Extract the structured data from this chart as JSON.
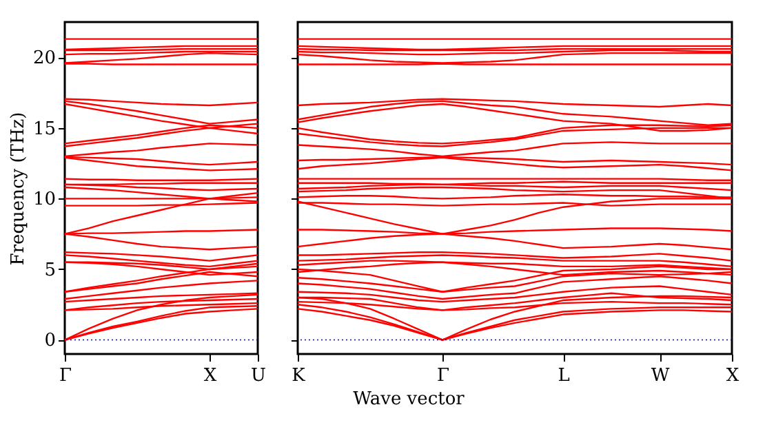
{
  "chart_data": [
    {
      "type": "line",
      "ylabel": "Frequency (THz)",
      "categories": [
        "Γ",
        null,
        null,
        null,
        null,
        null,
        "X",
        null,
        "U"
      ],
      "ylim": [
        -1,
        22.5
      ],
      "yticks": [
        0,
        5,
        10,
        15,
        20
      ],
      "grid": false,
      "legend": false,
      "ref_lines": [
        {
          "axis": "y",
          "value": 0,
          "color": "#0000ff",
          "line_style": "dotted"
        }
      ],
      "series": [
        {
          "color": "#ff0000",
          "values": [
            0,
            0.45,
            0.85,
            1.2,
            1.55,
            1.85,
            2.0,
            2.1,
            2.2
          ]
        },
        {
          "color": "#ff0000",
          "values": [
            0,
            0.5,
            0.95,
            1.3,
            1.7,
            2.05,
            2.3,
            2.35,
            2.4
          ]
        },
        {
          "color": "#ff0000",
          "values": [
            0,
            0.8,
            1.5,
            2.1,
            2.5,
            2.8,
            3.0,
            3.1,
            3.2
          ]
        },
        {
          "color": "#ff0000",
          "values": [
            2.1,
            2.15,
            2.2,
            2.3,
            2.4,
            2.45,
            2.5,
            2.55,
            2.6
          ]
        },
        {
          "color": "#ff0000",
          "values": [
            2.1,
            2.3,
            2.45,
            2.6,
            2.7,
            2.75,
            2.8,
            2.85,
            2.9
          ]
        },
        {
          "color": "#ff0000",
          "values": [
            2.7,
            2.8,
            2.9,
            3.0,
            3.1,
            3.15,
            3.2,
            3.25,
            3.3
          ]
        },
        {
          "color": "#ff0000",
          "values": [
            2.9,
            3.1,
            3.3,
            3.5,
            3.7,
            3.85,
            4.0,
            4.1,
            4.2
          ]
        },
        {
          "color": "#ff0000",
          "values": [
            3.4,
            3.6,
            3.8,
            4.0,
            4.3,
            4.55,
            4.8,
            4.65,
            4.5
          ]
        },
        {
          "color": "#ff0000",
          "values": [
            3.4,
            3.7,
            3.95,
            4.2,
            4.5,
            4.75,
            5.0,
            5.1,
            5.2
          ]
        },
        {
          "color": "#ff0000",
          "values": [
            5.5,
            5.45,
            5.35,
            5.2,
            5.0,
            4.8,
            4.6,
            4.7,
            4.8
          ]
        },
        {
          "color": "#ff0000",
          "values": [
            5.5,
            5.5,
            5.45,
            5.4,
            5.3,
            5.15,
            5.0,
            5.2,
            5.4
          ]
        },
        {
          "color": "#ff0000",
          "values": [
            6.0,
            5.9,
            5.75,
            5.6,
            5.45,
            5.3,
            5.2,
            5.4,
            5.6
          ]
        },
        {
          "color": "#ff0000",
          "values": [
            6.2,
            6.15,
            6.1,
            6.0,
            5.9,
            5.75,
            5.6,
            5.8,
            6.0
          ]
        },
        {
          "color": "#ff0000",
          "values": [
            7.5,
            7.3,
            7.05,
            6.8,
            6.6,
            6.5,
            6.4,
            6.5,
            6.6
          ]
        },
        {
          "color": "#ff0000",
          "values": [
            7.5,
            7.55,
            7.55,
            7.6,
            7.65,
            7.7,
            7.7,
            7.75,
            7.8
          ]
        },
        {
          "color": "#ff0000",
          "values": [
            9.5,
            9.5,
            9.5,
            9.5,
            9.55,
            9.55,
            9.6,
            9.65,
            9.7
          ]
        },
        {
          "color": "#ff0000",
          "values": [
            7.5,
            7.9,
            8.4,
            8.8,
            9.2,
            9.6,
            10.0,
            9.9,
            9.8
          ]
        },
        {
          "color": "#ff0000",
          "values": [
            10.0,
            10.0,
            10.0,
            10.0,
            10.0,
            10.0,
            10.0,
            10.05,
            10.1
          ]
        },
        {
          "color": "#ff0000",
          "values": [
            10.8,
            10.7,
            10.6,
            10.45,
            10.3,
            10.15,
            10.0,
            10.2,
            10.4
          ]
        },
        {
          "color": "#ff0000",
          "values": [
            11.0,
            10.95,
            10.9,
            10.8,
            10.75,
            10.65,
            10.6,
            10.65,
            10.7
          ]
        },
        {
          "color": "#ff0000",
          "values": [
            11.0,
            11.0,
            11.0,
            11.05,
            11.05,
            11.1,
            11.1,
            11.1,
            11.1
          ]
        },
        {
          "color": "#ff0000",
          "values": [
            11.4,
            11.35,
            11.35,
            11.3,
            11.3,
            11.3,
            11.3,
            11.35,
            11.4
          ]
        },
        {
          "color": "#ff0000",
          "values": [
            12.9,
            12.7,
            12.5,
            12.3,
            12.2,
            12.1,
            12.0,
            12.05,
            12.1
          ]
        },
        {
          "color": "#ff0000",
          "values": [
            12.95,
            12.9,
            12.85,
            12.8,
            12.65,
            12.5,
            12.4,
            12.5,
            12.6
          ]
        },
        {
          "color": "#ff0000",
          "values": [
            13.0,
            13.15,
            13.3,
            13.4,
            13.6,
            13.75,
            13.9,
            13.85,
            13.8
          ]
        },
        {
          "color": "#ff0000",
          "values": [
            13.7,
            13.9,
            14.1,
            14.3,
            14.55,
            14.8,
            15.0,
            14.8,
            14.6
          ]
        },
        {
          "color": "#ff0000",
          "values": [
            13.9,
            14.1,
            14.3,
            14.5,
            14.75,
            15.0,
            15.2,
            15.1,
            15.0
          ]
        },
        {
          "color": "#ff0000",
          "values": [
            16.7,
            16.4,
            16.1,
            15.8,
            15.5,
            15.25,
            15.0,
            15.15,
            15.3
          ]
        },
        {
          "color": "#ff0000",
          "values": [
            16.9,
            16.7,
            16.45,
            16.2,
            15.9,
            15.6,
            15.3,
            15.45,
            15.6
          ]
        },
        {
          "color": "#ff0000",
          "values": [
            17.05,
            17.0,
            16.9,
            16.8,
            16.7,
            16.65,
            16.6,
            16.7,
            16.8
          ]
        },
        {
          "color": "#ff0000",
          "values": [
            19.6,
            19.7,
            19.8,
            19.9,
            20.05,
            20.2,
            20.3,
            20.25,
            20.2
          ]
        },
        {
          "color": "#ff0000",
          "values": [
            20.2,
            20.25,
            20.25,
            20.3,
            20.35,
            20.4,
            20.4,
            20.4,
            20.4
          ]
        },
        {
          "color": "#ff0000",
          "values": [
            20.5,
            20.5,
            20.5,
            20.5,
            20.55,
            20.6,
            20.6,
            20.6,
            20.6
          ]
        },
        {
          "color": "#ff0000",
          "values": [
            20.55,
            20.6,
            20.65,
            20.7,
            20.75,
            20.8,
            20.8,
            20.8,
            20.8
          ]
        },
        {
          "color": "#ff0000",
          "values": [
            21.3,
            21.3,
            21.3,
            21.3,
            21.3,
            21.3,
            21.3,
            21.3,
            21.3
          ]
        },
        {
          "color": "#ff0000",
          "values": [
            19.55,
            19.55,
            19.5,
            19.5,
            19.5,
            19.5,
            19.5,
            19.5,
            19.5
          ]
        }
      ]
    },
    {
      "type": "line",
      "xlabel": "Wave vector",
      "categories": [
        "K",
        null,
        null,
        null,
        null,
        null,
        "Γ",
        null,
        null,
        null,
        null,
        "L",
        null,
        null,
        null,
        "W",
        null,
        null,
        "X"
      ],
      "ylim": [
        -1,
        22.5
      ],
      "yticks": [
        0,
        5,
        10,
        15,
        20
      ],
      "tick_labels": "x",
      "grid": false,
      "legend": false,
      "ref_lines": [
        {
          "axis": "y",
          "value": 0,
          "color": "#0000ff",
          "line_style": "dotted"
        }
      ],
      "series": [
        {
          "color": "#ff0000",
          "values": [
            2.2,
            2.0,
            1.7,
            1.4,
            1.0,
            0.5,
            0,
            0.45,
            0.85,
            1.2,
            1.5,
            1.8,
            1.9,
            2.0,
            2.05,
            2.1,
            2.1,
            2.05,
            2.0
          ]
        },
        {
          "color": "#ff0000",
          "values": [
            2.5,
            2.3,
            2.0,
            1.6,
            1.1,
            0.55,
            0,
            0.5,
            0.95,
            1.4,
            1.7,
            2.0,
            2.1,
            2.2,
            2.25,
            2.3,
            2.3,
            2.3,
            2.3
          ]
        },
        {
          "color": "#ff0000",
          "values": [
            3.0,
            2.9,
            2.6,
            2.2,
            1.5,
            0.75,
            0,
            0.75,
            1.45,
            2.0,
            2.4,
            2.8,
            2.9,
            3.0,
            3.05,
            3.1,
            3.1,
            3.05,
            3.0
          ]
        },
        {
          "color": "#ff0000",
          "values": [
            2.7,
            2.65,
            2.6,
            2.5,
            2.35,
            2.2,
            2.1,
            2.15,
            2.25,
            2.3,
            2.45,
            2.6,
            2.65,
            2.7,
            2.65,
            2.6,
            2.6,
            2.55,
            2.5
          ]
        },
        {
          "color": "#ff0000",
          "values": [
            3.0,
            3.0,
            2.95,
            2.9,
            2.6,
            2.3,
            2.1,
            2.3,
            2.45,
            2.6,
            2.8,
            3.0,
            3.15,
            3.3,
            3.15,
            3.0,
            2.95,
            2.9,
            2.8
          ]
        },
        {
          "color": "#ff0000",
          "values": [
            3.4,
            3.35,
            3.3,
            3.2,
            3.0,
            2.8,
            2.7,
            2.8,
            2.9,
            3.0,
            3.2,
            3.4,
            3.55,
            3.7,
            3.75,
            3.8,
            3.6,
            3.4,
            3.2
          ]
        },
        {
          "color": "#ff0000",
          "values": [
            4.0,
            3.9,
            3.75,
            3.6,
            3.35,
            3.1,
            2.9,
            3.05,
            3.2,
            3.3,
            3.7,
            4.1,
            4.2,
            4.3,
            4.4,
            4.5,
            4.35,
            4.2,
            4.0
          ]
        },
        {
          "color": "#ff0000",
          "values": [
            4.4,
            4.3,
            4.15,
            4.0,
            3.8,
            3.6,
            3.4,
            3.55,
            3.7,
            3.8,
            4.15,
            4.5,
            4.6,
            4.7,
            4.65,
            4.6,
            4.65,
            4.7,
            4.8
          ]
        },
        {
          "color": "#ff0000",
          "values": [
            5.0,
            4.9,
            4.75,
            4.6,
            4.2,
            3.8,
            3.4,
            3.7,
            3.95,
            4.2,
            4.55,
            4.9,
            4.95,
            5.0,
            5.1,
            5.2,
            5.1,
            5.0,
            5.0
          ]
        },
        {
          "color": "#ff0000",
          "values": [
            4.8,
            4.95,
            5.1,
            5.2,
            5.35,
            5.45,
            5.5,
            5.35,
            5.2,
            5.0,
            4.8,
            4.6,
            4.7,
            4.8,
            4.85,
            4.9,
            4.8,
            4.7,
            4.6
          ]
        },
        {
          "color": "#ff0000",
          "values": [
            5.3,
            5.4,
            5.5,
            5.6,
            5.6,
            5.55,
            5.5,
            5.45,
            5.4,
            5.4,
            5.3,
            5.2,
            5.2,
            5.2,
            5.25,
            5.3,
            5.2,
            5.1,
            5.0
          ]
        },
        {
          "color": "#ff0000",
          "values": [
            5.6,
            5.65,
            5.7,
            5.8,
            5.9,
            5.95,
            6.0,
            5.95,
            5.85,
            5.8,
            5.7,
            5.6,
            5.6,
            5.6,
            5.6,
            5.6,
            5.5,
            5.35,
            5.2
          ]
        },
        {
          "color": "#ff0000",
          "values": [
            6.0,
            6.0,
            6.05,
            6.1,
            6.15,
            6.2,
            6.2,
            6.15,
            6.1,
            6.0,
            5.9,
            5.8,
            5.85,
            5.9,
            6.0,
            6.1,
            5.95,
            5.8,
            5.6
          ]
        },
        {
          "color": "#ff0000",
          "values": [
            6.6,
            6.8,
            7.0,
            7.2,
            7.35,
            7.45,
            7.5,
            7.35,
            7.2,
            7.0,
            6.75,
            6.5,
            6.55,
            6.6,
            6.7,
            6.8,
            6.7,
            6.55,
            6.4
          ]
        },
        {
          "color": "#ff0000",
          "values": [
            7.8,
            7.8,
            7.75,
            7.7,
            7.65,
            7.55,
            7.5,
            7.55,
            7.65,
            7.7,
            7.75,
            7.8,
            7.85,
            7.9,
            7.9,
            7.9,
            7.85,
            7.8,
            7.7
          ]
        },
        {
          "color": "#ff0000",
          "values": [
            9.7,
            9.7,
            9.65,
            9.6,
            9.6,
            9.55,
            9.5,
            9.55,
            9.6,
            9.6,
            9.65,
            9.7,
            9.6,
            9.5,
            9.55,
            9.6,
            9.6,
            9.6,
            9.6
          ]
        },
        {
          "color": "#ff0000",
          "values": [
            9.8,
            9.4,
            9.0,
            8.6,
            8.2,
            7.85,
            7.5,
            7.8,
            8.1,
            8.5,
            9.0,
            9.4,
            9.6,
            9.8,
            9.9,
            10.0,
            10.0,
            10.0,
            10.0
          ]
        },
        {
          "color": "#ff0000",
          "values": [
            10.1,
            10.15,
            10.2,
            10.2,
            10.15,
            10.05,
            10.0,
            10.05,
            10.1,
            10.2,
            10.25,
            10.3,
            10.25,
            10.2,
            10.2,
            10.15,
            10.15,
            10.1,
            10.1
          ]
        },
        {
          "color": "#ff0000",
          "values": [
            10.5,
            10.55,
            10.6,
            10.7,
            10.75,
            10.8,
            10.8,
            10.75,
            10.7,
            10.6,
            10.55,
            10.5,
            10.55,
            10.6,
            10.6,
            10.6,
            10.4,
            10.2,
            10.0
          ]
        },
        {
          "color": "#ff0000",
          "values": [
            10.7,
            10.75,
            10.8,
            10.9,
            10.95,
            11.0,
            11.0,
            10.95,
            10.9,
            10.9,
            10.85,
            10.8,
            10.85,
            10.9,
            10.9,
            10.9,
            10.8,
            10.7,
            10.6
          ]
        },
        {
          "color": "#ff0000",
          "values": [
            11.1,
            11.1,
            11.1,
            11.1,
            11.05,
            11.05,
            11.0,
            11.05,
            11.1,
            11.1,
            11.15,
            11.2,
            11.15,
            11.1,
            11.1,
            11.1,
            11.1,
            11.1,
            11.1
          ]
        },
        {
          "color": "#ff0000",
          "values": [
            11.4,
            11.4,
            11.4,
            11.4,
            11.4,
            11.4,
            11.4,
            11.4,
            11.4,
            11.4,
            11.4,
            11.4,
            11.4,
            11.4,
            11.4,
            11.4,
            11.35,
            11.3,
            11.3
          ]
        },
        {
          "color": "#ff0000",
          "values": [
            12.1,
            12.3,
            12.4,
            12.5,
            12.65,
            12.8,
            12.9,
            12.75,
            12.6,
            12.45,
            12.3,
            12.2,
            12.25,
            12.3,
            12.35,
            12.4,
            12.3,
            12.15,
            12.0
          ]
        },
        {
          "color": "#ff0000",
          "values": [
            12.7,
            12.75,
            12.75,
            12.8,
            12.85,
            12.9,
            12.95,
            12.9,
            12.85,
            12.8,
            12.7,
            12.6,
            12.65,
            12.7,
            12.65,
            12.6,
            12.55,
            12.5,
            12.4
          ]
        },
        {
          "color": "#ff0000",
          "values": [
            13.8,
            13.7,
            13.6,
            13.5,
            13.35,
            13.15,
            13.0,
            13.15,
            13.3,
            13.4,
            13.65,
            13.9,
            13.95,
            14.0,
            13.95,
            13.9,
            13.9,
            13.9,
            13.9
          ]
        },
        {
          "color": "#ff0000",
          "values": [
            14.6,
            14.4,
            14.2,
            14.0,
            13.85,
            13.75,
            13.7,
            13.85,
            14.0,
            14.2,
            14.5,
            14.8,
            14.85,
            14.9,
            14.95,
            15.0,
            15.0,
            15.0,
            15.0
          ]
        },
        {
          "color": "#ff0000",
          "values": [
            15.0,
            14.7,
            14.45,
            14.2,
            14.05,
            13.95,
            13.9,
            14.0,
            14.15,
            14.3,
            14.65,
            15.0,
            15.1,
            15.2,
            15.2,
            15.2,
            15.15,
            15.1,
            15.2
          ]
        },
        {
          "color": "#ff0000",
          "values": [
            15.4,
            15.7,
            15.95,
            16.2,
            16.4,
            16.6,
            16.7,
            16.5,
            16.25,
            16.0,
            15.75,
            15.5,
            15.4,
            15.3,
            15.05,
            14.8,
            14.8,
            14.85,
            15.0
          ]
        },
        {
          "color": "#ff0000",
          "values": [
            15.6,
            15.9,
            16.2,
            16.5,
            16.7,
            16.85,
            16.9,
            16.75,
            16.6,
            16.5,
            16.25,
            16.0,
            15.9,
            15.8,
            15.65,
            15.5,
            15.35,
            15.2,
            15.3
          ]
        },
        {
          "color": "#ff0000",
          "values": [
            16.6,
            16.7,
            16.75,
            16.8,
            16.9,
            17.0,
            17.05,
            17.0,
            16.95,
            16.9,
            16.8,
            16.7,
            16.65,
            16.6,
            16.55,
            16.5,
            16.6,
            16.7,
            16.6
          ]
        },
        {
          "color": "#ff0000",
          "values": [
            20.2,
            20.1,
            19.95,
            19.8,
            19.7,
            19.65,
            19.6,
            19.65,
            19.7,
            19.8,
            20.0,
            20.2,
            20.25,
            20.3,
            20.3,
            20.3,
            20.3,
            20.3,
            20.3
          ]
        },
        {
          "color": "#ff0000",
          "values": [
            20.4,
            20.35,
            20.35,
            20.3,
            20.25,
            20.2,
            20.2,
            20.25,
            20.3,
            20.3,
            20.35,
            20.4,
            20.45,
            20.5,
            20.5,
            20.5,
            20.45,
            20.4,
            20.4
          ]
        },
        {
          "color": "#ff0000",
          "values": [
            20.6,
            20.55,
            20.55,
            20.5,
            20.5,
            20.5,
            20.5,
            20.5,
            20.5,
            20.5,
            20.55,
            20.6,
            20.6,
            20.6,
            20.6,
            20.6,
            20.6,
            20.6,
            20.6
          ]
        },
        {
          "color": "#ff0000",
          "values": [
            20.8,
            20.75,
            20.7,
            20.65,
            20.6,
            20.55,
            20.55,
            20.6,
            20.65,
            20.7,
            20.75,
            20.8,
            20.8,
            20.8,
            20.8,
            20.8,
            20.8,
            20.8,
            20.8
          ]
        },
        {
          "color": "#ff0000",
          "values": [
            21.3,
            21.3,
            21.3,
            21.3,
            21.3,
            21.3,
            21.3,
            21.3,
            21.3,
            21.3,
            21.3,
            21.3,
            21.3,
            21.3,
            21.3,
            21.3,
            21.3,
            21.3,
            21.3
          ]
        },
        {
          "color": "#ff0000",
          "values": [
            19.5,
            19.5,
            19.5,
            19.5,
            19.5,
            19.5,
            19.55,
            19.5,
            19.5,
            19.5,
            19.5,
            19.5,
            19.5,
            19.5,
            19.5,
            19.5,
            19.5,
            19.5,
            19.5
          ]
        }
      ]
    }
  ]
}
